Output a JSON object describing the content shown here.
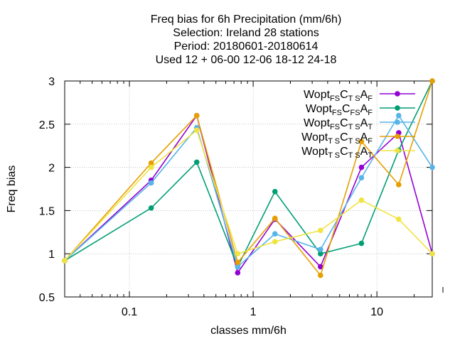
{
  "chart_data": {
    "type": "line",
    "title_lines": [
      "Freq bias  for 6h Precipitation (mm/6h)",
      "Selection: Ireland     28 stations",
      "Period: 20180601-20180614",
      "Used  12 + 06-00 12-06 18-12 24-18"
    ],
    "xlabel": "classes mm/6h",
    "ylabel": "Freq bias",
    "x_scale": "log",
    "xlim": [
      0.03,
      28
    ],
    "ylim": [
      0.5,
      3
    ],
    "x_ticks": [
      0.1,
      1,
      10
    ],
    "x_tick_labels": [
      "0.1",
      "1",
      "10"
    ],
    "y_ticks": [
      0.5,
      1,
      1.5,
      2,
      2.5,
      3
    ],
    "y_tick_labels": [
      "0.5",
      "1",
      "1.5",
      "2",
      "2.5",
      "3"
    ],
    "grid": true,
    "legend_position": "top-right",
    "x": [
      0.03,
      0.15,
      0.35,
      0.75,
      1.5,
      3.5,
      7.5,
      15,
      28
    ],
    "series": [
      {
        "legend": [
          [
            "Wopt",
            ""
          ],
          [
            "FS",
            "sub"
          ],
          [
            "C",
            ""
          ],
          [
            "T S",
            "sub"
          ],
          [
            "A",
            ""
          ],
          [
            "F",
            "sub"
          ]
        ],
        "color": "#9400d3",
        "marker": "circle",
        "values": [
          0.92,
          1.85,
          2.6,
          0.78,
          1.4,
          0.85,
          2.0,
          2.4,
          1.0
        ]
      },
      {
        "legend": [
          [
            "Wopt",
            ""
          ],
          [
            "FS",
            "sub"
          ],
          [
            "C",
            ""
          ],
          [
            "FS",
            "sub"
          ],
          [
            "A",
            ""
          ],
          [
            "F",
            "sub"
          ]
        ],
        "color": "#009e73",
        "marker": "circle",
        "values": [
          0.92,
          1.53,
          2.06,
          0.85,
          1.72,
          1.0,
          1.12,
          2.2,
          3.0
        ]
      },
      {
        "legend": [
          [
            "Wopt",
            ""
          ],
          [
            "FS",
            "sub"
          ],
          [
            "C",
            ""
          ],
          [
            "T S",
            "sub"
          ],
          [
            "A",
            ""
          ],
          [
            "T",
            "sub"
          ]
        ],
        "color": "#56b4e9",
        "marker": "circle",
        "values": [
          0.92,
          1.82,
          2.46,
          0.85,
          1.23,
          1.05,
          1.88,
          2.6,
          2.0
        ]
      },
      {
        "legend": [
          [
            "Wopt",
            ""
          ],
          [
            "T S",
            "sub"
          ],
          [
            "C",
            ""
          ],
          [
            "T S",
            "sub"
          ],
          [
            "A",
            ""
          ],
          [
            "F",
            "sub"
          ]
        ],
        "color": "#e69f00",
        "marker": "circle",
        "values": [
          0.92,
          2.05,
          2.6,
          0.9,
          1.41,
          0.75,
          2.3,
          1.8,
          3.0
        ]
      },
      {
        "legend": [
          [
            "Wopt",
            ""
          ],
          [
            "T S",
            "sub"
          ],
          [
            "C",
            ""
          ],
          [
            "T S",
            "sub"
          ],
          [
            "A",
            ""
          ],
          [
            "T",
            "sub"
          ]
        ],
        "color": "#f0e442",
        "marker": "circle",
        "values": [
          0.92,
          2.0,
          2.43,
          1.0,
          1.14,
          1.27,
          1.62,
          1.4,
          1.0
        ]
      }
    ]
  }
}
